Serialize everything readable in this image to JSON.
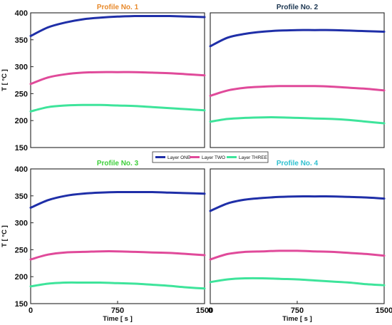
{
  "chart_data": [
    {
      "type": "line",
      "title": "Profile No. 1",
      "title_color": "#e8892a",
      "xlabel": "",
      "ylabel": "T [ °C ]",
      "xlim": [
        0,
        1500
      ],
      "ylim": [
        150,
        400
      ],
      "xticks": [],
      "yticks": [
        150,
        200,
        250,
        300,
        350,
        400
      ],
      "x": [
        0,
        150,
        300,
        450,
        600,
        750,
        900,
        1050,
        1200,
        1350,
        1500
      ],
      "series": [
        {
          "name": "Layer ONE",
          "color": "#1f2fa8",
          "values": [
            357,
            373,
            382,
            388,
            391,
            393,
            394,
            394,
            394,
            393,
            392
          ]
        },
        {
          "name": "Layer TWO",
          "color": "#e04a9a",
          "values": [
            268,
            280,
            286,
            289,
            290,
            290,
            290,
            289,
            288,
            286,
            284
          ]
        },
        {
          "name": "Layer THREE",
          "color": "#3ee49b",
          "values": [
            217,
            225,
            228,
            229,
            229,
            228,
            227,
            225,
            223,
            221,
            219
          ]
        }
      ]
    },
    {
      "type": "line",
      "title": "Profile No. 2",
      "title_color": "#1b3550",
      "xlabel": "",
      "ylabel": "",
      "xlim": [
        0,
        1500
      ],
      "ylim": [
        150,
        400
      ],
      "xticks": [],
      "yticks": [],
      "x": [
        0,
        150,
        300,
        450,
        600,
        750,
        900,
        1050,
        1200,
        1350,
        1500
      ],
      "series": [
        {
          "name": "Layer ONE",
          "color": "#1f2fa8",
          "values": [
            338,
            354,
            361,
            365,
            367,
            368,
            368,
            368,
            367,
            366,
            365
          ]
        },
        {
          "name": "Layer TWO",
          "color": "#e04a9a",
          "values": [
            246,
            256,
            261,
            263,
            264,
            264,
            264,
            263,
            261,
            259,
            256
          ]
        },
        {
          "name": "Layer THREE",
          "color": "#3ee49b",
          "values": [
            198,
            203,
            205,
            206,
            206,
            205,
            204,
            203,
            201,
            198,
            195
          ]
        }
      ]
    },
    {
      "type": "line",
      "title": "Profile No. 3",
      "title_color": "#3ecf3a",
      "xlabel": "Time [ s ]",
      "ylabel": "T [ °C ]",
      "xlim": [
        0,
        1500
      ],
      "ylim": [
        150,
        400
      ],
      "xticks": [
        0,
        750,
        1500
      ],
      "yticks": [
        150,
        200,
        250,
        300,
        350,
        400
      ],
      "x": [
        0,
        150,
        300,
        450,
        600,
        750,
        900,
        1050,
        1200,
        1350,
        1500
      ],
      "series": [
        {
          "name": "Layer ONE",
          "color": "#1f2fa8",
          "values": [
            328,
            342,
            350,
            354,
            356,
            357,
            357,
            357,
            356,
            355,
            354
          ]
        },
        {
          "name": "Layer TWO",
          "color": "#e04a9a",
          "values": [
            232,
            241,
            245,
            246,
            247,
            247,
            246,
            245,
            244,
            242,
            240
          ]
        },
        {
          "name": "Layer THREE",
          "color": "#3ee49b",
          "values": [
            182,
            187,
            189,
            189,
            189,
            188,
            187,
            185,
            183,
            180,
            178
          ]
        }
      ]
    },
    {
      "type": "line",
      "title": "Profile No. 4",
      "title_color": "#2fc0cf",
      "xlabel": "Time [ s ]",
      "ylabel": "",
      "xlim": [
        0,
        1500
      ],
      "ylim": [
        150,
        400
      ],
      "xticks": [
        0,
        750,
        1500
      ],
      "yticks": [],
      "x": [
        0,
        150,
        300,
        450,
        600,
        750,
        900,
        1050,
        1200,
        1350,
        1500
      ],
      "series": [
        {
          "name": "Layer ONE",
          "color": "#1f2fa8",
          "values": [
            322,
            336,
            343,
            346,
            348,
            349,
            349,
            349,
            348,
            347,
            345
          ]
        },
        {
          "name": "Layer TWO",
          "color": "#e04a9a",
          "values": [
            232,
            242,
            246,
            247,
            248,
            248,
            247,
            246,
            244,
            242,
            239
          ]
        },
        {
          "name": "Layer THREE",
          "color": "#3ee49b",
          "values": [
            190,
            195,
            197,
            197,
            196,
            195,
            193,
            191,
            189,
            186,
            184
          ]
        }
      ]
    }
  ],
  "legend": {
    "placement": "center",
    "items": [
      {
        "label": "Layer ONE",
        "color": "#1f2fa8"
      },
      {
        "label": "Layer TWO",
        "color": "#e04a9a"
      },
      {
        "label": "Layer THREE",
        "color": "#3ee49b"
      }
    ]
  }
}
